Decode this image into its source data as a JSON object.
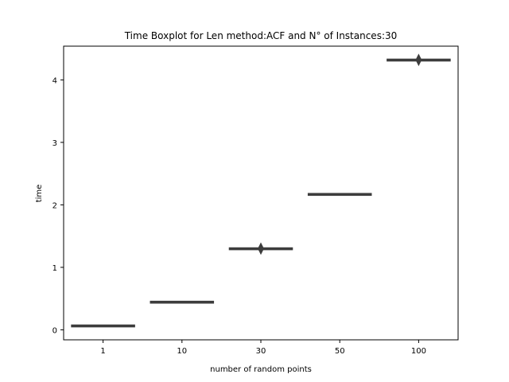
{
  "chart_data": {
    "type": "box",
    "title": "Time Boxplot for Len method:ACF and N° of Instances:30",
    "xlabel": "number of random points",
    "ylabel": "time",
    "categories": [
      "1",
      "10",
      "30",
      "50",
      "100"
    ],
    "ylim": [
      -0.16,
      4.54
    ],
    "yticks": [
      0,
      1,
      2,
      3,
      4
    ],
    "grid": false,
    "box_color": "#3d3d3d",
    "boxes": [
      {
        "category": "1",
        "whisker_low": 0.06,
        "q1": 0.06,
        "median": 0.065,
        "q3": 0.07,
        "whisker_high": 0.07,
        "outliers": []
      },
      {
        "category": "10",
        "whisker_low": 0.43,
        "q1": 0.44,
        "median": 0.445,
        "q3": 0.45,
        "whisker_high": 0.45,
        "outliers": []
      },
      {
        "category": "30",
        "whisker_low": 1.29,
        "q1": 1.295,
        "median": 1.3,
        "q3": 1.305,
        "whisker_high": 1.31,
        "outliers": [
          1.3
        ]
      },
      {
        "category": "50",
        "whisker_low": 2.15,
        "q1": 2.16,
        "median": 2.165,
        "q3": 2.175,
        "whisker_high": 2.18,
        "outliers": []
      },
      {
        "category": "100",
        "whisker_low": 4.31,
        "q1": 4.315,
        "median": 4.32,
        "q3": 4.325,
        "whisker_high": 4.33,
        "outliers": [
          4.32
        ]
      }
    ]
  }
}
